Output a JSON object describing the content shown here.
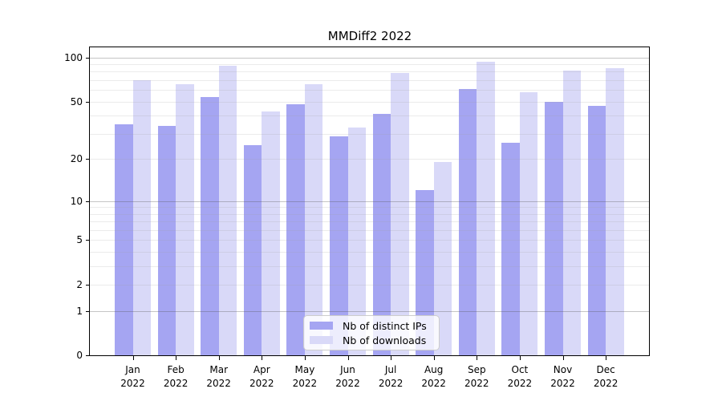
{
  "figure": {
    "title": "MMDiff2 2022",
    "background": "#ffffff"
  },
  "chart_data": {
    "type": "bar",
    "title": "MMDiff2 2022",
    "categories": [
      "Jan",
      "Feb",
      "Mar",
      "Apr",
      "May",
      "Jun",
      "Jul",
      "Aug",
      "Sep",
      "Oct",
      "Nov",
      "Dec"
    ],
    "category_year": "2022",
    "series": [
      {
        "name": "Nb of distinct IPs",
        "color": "#a5a5f2",
        "values": [
          35,
          34,
          54,
          25,
          48,
          29,
          41,
          12,
          61,
          26,
          50,
          47
        ]
      },
      {
        "name": "Nb of downloads",
        "color": "#d9d9f8",
        "values": [
          70,
          66,
          88,
          43,
          66,
          33,
          78,
          19,
          94,
          58,
          81,
          85
        ]
      }
    ],
    "xlabel": "",
    "ylabel": "",
    "yscale": "log1p",
    "yticks": [
      0,
      1,
      2,
      5,
      10,
      20,
      50,
      100
    ],
    "major_gridlines": [
      1,
      10,
      100
    ],
    "minor_gridlines": [
      2,
      3,
      4,
      5,
      6,
      7,
      8,
      9,
      20,
      30,
      40,
      50,
      60,
      70,
      80,
      90
    ],
    "ylim": [
      0,
      117
    ],
    "grid": true,
    "legend_position": "lower center",
    "bar_grouping": "grouped"
  },
  "legend": {
    "items": [
      {
        "label": "Nb of distinct IPs",
        "color": "#a5a5f2"
      },
      {
        "label": "Nb of downloads",
        "color": "#d9d9f8"
      }
    ]
  },
  "colors": {
    "ips_bar": "#a5a5f2",
    "downloads_bar": "#d9d9f8",
    "grid_major": "rgba(90,90,90,0.35)",
    "grid_minor": "rgba(165,165,165,0.22)",
    "axis": "#000000",
    "text": "#000000",
    "legend_border": "#cccccc",
    "legend_background": "rgba(255,255,255,0.8)"
  }
}
